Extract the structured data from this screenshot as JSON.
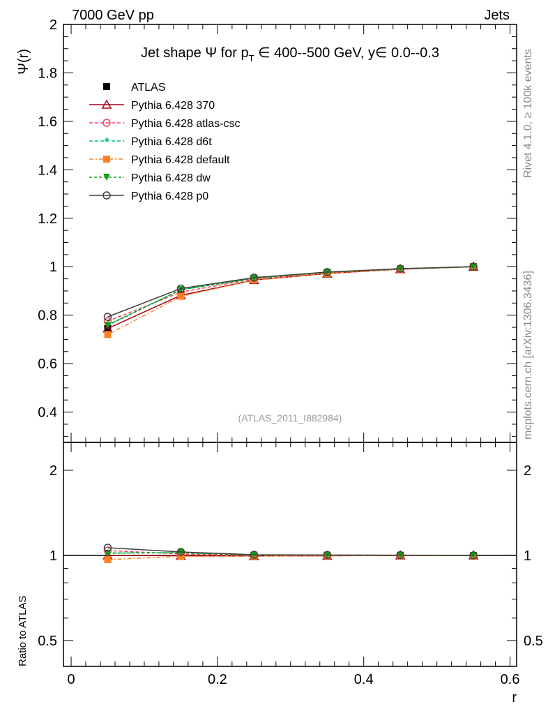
{
  "chart_data": {
    "type": "line",
    "header_left": "7000 GeV pp",
    "header_right": "Jets",
    "title_parts": [
      "Jet shape ",
      "Ψ",
      " for p",
      "T",
      " ∈ 400--500 GeV, y∈ 0.0--0.3"
    ],
    "ylabel": "Ψ(r)",
    "xlabel": "r",
    "ratio_ylabel": "Ratio to ATLAS",
    "side_text_1": "Rivet 4.1.0, ≥ 100k events",
    "side_text_2": "mcplots.cern.ch [arXiv:1306.3436]",
    "analysis_label": "(ATLAS_2011_I882984)",
    "xlim": [
      -0.0105,
      0.609
    ],
    "ylim": [
      0.275,
      2.0
    ],
    "ratio_ylim": [
      0.405,
      2.51
    ],
    "xticks": [
      0,
      0.2,
      0.4,
      0.6
    ],
    "xtick_labels": [
      "0",
      "0.2",
      "0.4",
      "0.6"
    ],
    "yticks": [
      0.4,
      0.6,
      0.8,
      1,
      1.2,
      1.4,
      1.6,
      1.8,
      2
    ],
    "ytick_labels": [
      "0.4",
      "0.6",
      "0.8",
      "1",
      "1.2",
      "1.4",
      "1.6",
      "1.8",
      "2"
    ],
    "ratio_yticks": [
      0.5,
      1,
      2
    ],
    "ratio_ytick_labels": [
      "0.5",
      "1",
      "2"
    ],
    "x": [
      0.05,
      0.15,
      0.25,
      0.35,
      0.45,
      0.55
    ],
    "reference": {
      "name": "ATLAS",
      "values": [
        0.745,
        0.885,
        0.95,
        0.975,
        0.99,
        1.0
      ],
      "errors": [
        0.012,
        0.008,
        0.004,
        0.003,
        0.002,
        0.001
      ],
      "color": "#000000"
    },
    "series": [
      {
        "name": "Pythia 6.428 370",
        "values": [
          0.745,
          0.882,
          0.945,
          0.972,
          0.99,
          1.0
        ],
        "color": "#a0001c",
        "dash": "",
        "marker": "triangle-open"
      },
      {
        "name": "Pythia 6.428 atlas-csc",
        "values": [
          0.775,
          0.895,
          0.95,
          0.975,
          0.99,
          1.0
        ],
        "color": "#ff4060",
        "dash": "5,3",
        "marker": "circle-open"
      },
      {
        "name": "Pythia 6.428 d6t",
        "values": [
          0.76,
          0.905,
          0.953,
          0.977,
          0.991,
          1.0
        ],
        "color": "#00c080",
        "dash": "5,3",
        "marker": "star"
      },
      {
        "name": "Pythia 6.428 default",
        "values": [
          0.72,
          0.878,
          0.945,
          0.972,
          0.99,
          1.0
        ],
        "color": "#ff8020",
        "dash": "6,3,2,3",
        "marker": "square"
      },
      {
        "name": "Pythia 6.428 dw",
        "values": [
          0.758,
          0.905,
          0.952,
          0.977,
          0.991,
          1.0
        ],
        "color": "#10a010",
        "dash": "4,3",
        "marker": "triangle-down"
      },
      {
        "name": "Pythia 6.428 p0",
        "values": [
          0.793,
          0.91,
          0.955,
          0.978,
          0.992,
          1.0
        ],
        "color": "#404040",
        "dash": "",
        "marker": "circle-open"
      }
    ]
  }
}
